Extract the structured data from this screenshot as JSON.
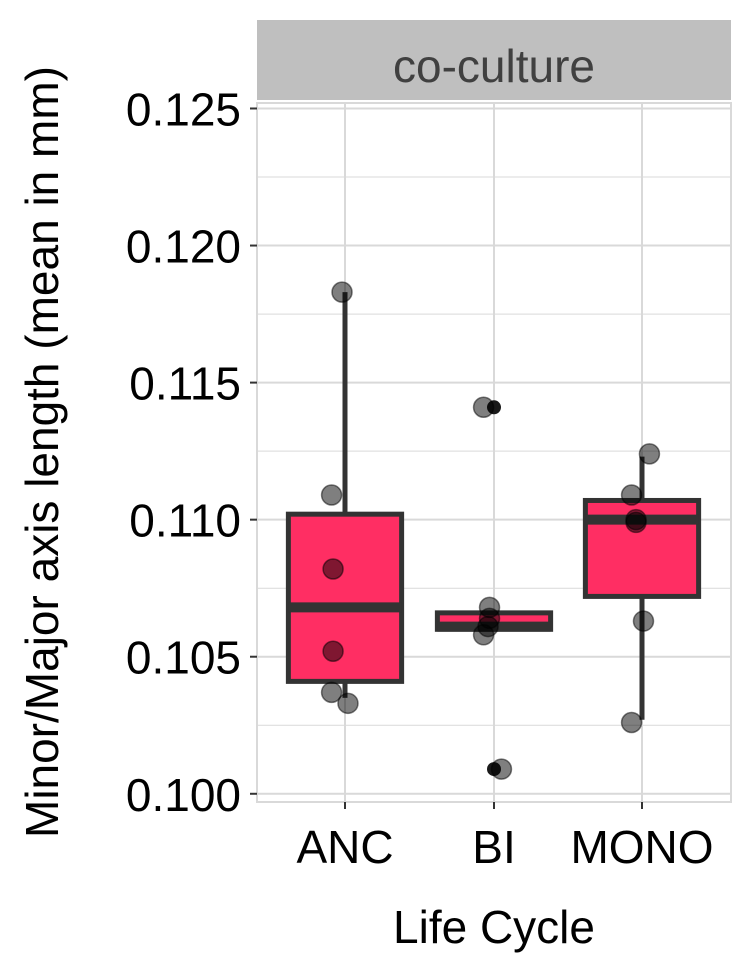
{
  "chart_data": {
    "type": "box",
    "facet_label": "co-culture",
    "xlabel": "Life Cycle",
    "ylabel": "Minor/Major axis length (mean in mm)",
    "ylim": [
      0.0997,
      0.1252
    ],
    "yticks": [
      0.1,
      0.105,
      0.11,
      0.115,
      0.12,
      0.125
    ],
    "ytick_labels": [
      "0.100",
      "0.105",
      "0.110",
      "0.115",
      "0.120",
      "0.125"
    ],
    "categories": [
      "ANC",
      "BI",
      "MONO"
    ],
    "boxes": [
      {
        "category": "ANC",
        "q1": 0.1041,
        "median": 0.1068,
        "q3": 0.1102,
        "whisker_low": 0.1035,
        "whisker_high": 0.1183
      },
      {
        "category": "BI",
        "q1": 0.106,
        "median": 0.1061,
        "q3": 0.1066,
        "whisker_low": 0.106,
        "whisker_high": 0.1066
      },
      {
        "category": "MONO",
        "q1": 0.1072,
        "median": 0.11,
        "q3": 0.1107,
        "whisker_low": 0.1027,
        "whisker_high": 0.1123
      }
    ],
    "outliers": [
      {
        "category": "BI",
        "value": 0.1141
      },
      {
        "category": "BI",
        "value": 0.1009
      }
    ],
    "points": [
      {
        "category": "ANC",
        "value": 0.1183,
        "jitter": -0.02
      },
      {
        "category": "ANC",
        "value": 0.1109,
        "jitter": -0.09
      },
      {
        "category": "ANC",
        "value": 0.1082,
        "jitter": -0.08
      },
      {
        "category": "ANC",
        "value": 0.1052,
        "jitter": -0.08
      },
      {
        "category": "ANC",
        "value": 0.1037,
        "jitter": -0.09
      },
      {
        "category": "ANC",
        "value": 0.1033,
        "jitter": 0.02
      },
      {
        "category": "BI",
        "value": 0.1141,
        "jitter": -0.07
      },
      {
        "category": "BI",
        "value": 0.1068,
        "jitter": -0.03
      },
      {
        "category": "BI",
        "value": 0.1064,
        "jitter": -0.03
      },
      {
        "category": "BI",
        "value": 0.1061,
        "jitter": -0.04
      },
      {
        "category": "BI",
        "value": 0.1058,
        "jitter": -0.07
      },
      {
        "category": "BI",
        "value": 0.1009,
        "jitter": 0.05
      },
      {
        "category": "MONO",
        "value": 0.1124,
        "jitter": 0.05
      },
      {
        "category": "MONO",
        "value": 0.1109,
        "jitter": -0.07
      },
      {
        "category": "MONO",
        "value": 0.11,
        "jitter": -0.04
      },
      {
        "category": "MONO",
        "value": 0.1099,
        "jitter": -0.04
      },
      {
        "category": "MONO",
        "value": 0.1063,
        "jitter": 0.01
      },
      {
        "category": "MONO",
        "value": 0.1026,
        "jitter": -0.07
      }
    ],
    "colors": {
      "box_fill": "#ff2e63",
      "box_stroke": "#333333",
      "point_fill": "#000000",
      "strip_fill": "#bfbfbf",
      "grid": "#d9d9d9",
      "panel_border": "#d9d9d9"
    },
    "grid": true,
    "legend": "none"
  }
}
